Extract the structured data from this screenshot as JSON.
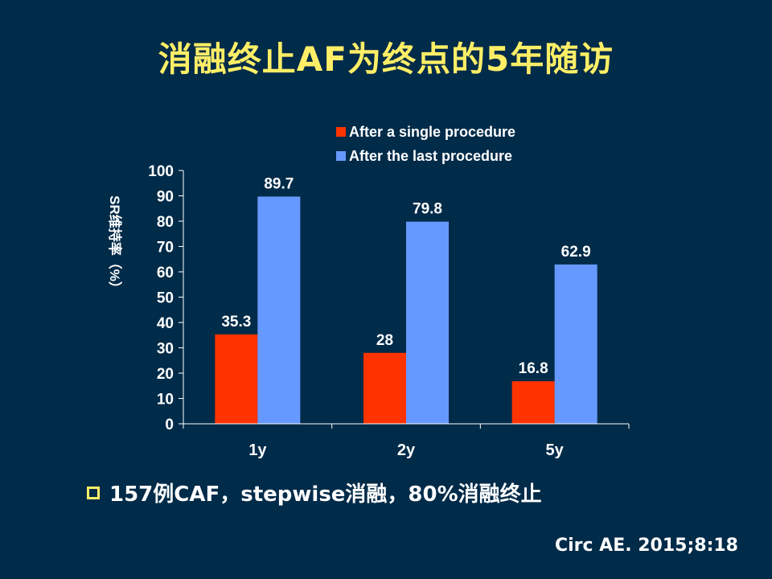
{
  "slide": {
    "title": "消融终止AF为终点的5年随访",
    "bullet": "157例CAF，stepwise消融，80%消融终止",
    "citation": "Circ AE. 2015;8:18"
  },
  "colors": {
    "background": "#002b49",
    "title": "#ffee66",
    "series_single": "#ff3300",
    "series_last": "#6699ff",
    "text": "#ffffff"
  },
  "chart_data": {
    "type": "bar",
    "title": "",
    "xlabel": "",
    "ylabel": "SR维持率（%）",
    "ylim": [
      0,
      100
    ],
    "yticks": [
      0,
      10,
      20,
      30,
      40,
      50,
      60,
      70,
      80,
      90,
      100
    ],
    "categories": [
      "1y",
      "2y",
      "5y"
    ],
    "series": [
      {
        "name": "After a single procedure",
        "values": [
          35.3,
          28,
          16.8
        ],
        "labels": [
          "35.3",
          "28",
          "16.8"
        ],
        "color": "#ff3300"
      },
      {
        "name": "After the last procedure",
        "values": [
          89.7,
          79.8,
          62.9
        ],
        "labels": [
          "89.7",
          "79.8",
          "62.9"
        ],
        "color": "#6699ff"
      }
    ],
    "legend": "top",
    "grid": false
  }
}
